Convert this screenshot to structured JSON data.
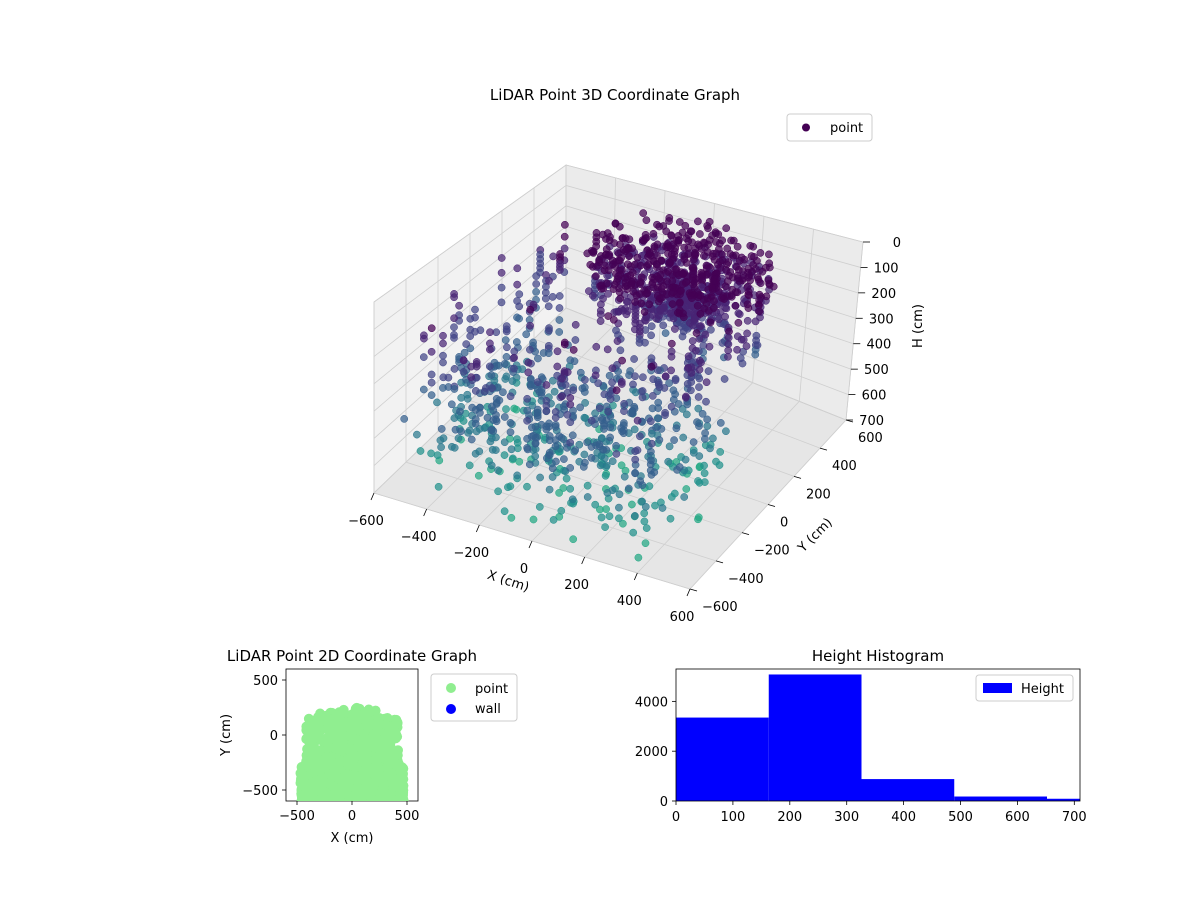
{
  "chart_data": [
    {
      "type": "scatter",
      "projection": "3d",
      "title": "LiDAR Point 3D Coordinate Graph",
      "xlabel": "X (cm)",
      "ylabel": "Y (cm)",
      "zlabel": "H (cm)",
      "xlim": [
        -600,
        600
      ],
      "ylim": [
        -600,
        600
      ],
      "zlim": [
        0,
        700
      ],
      "z_inverted": true,
      "xticks": [
        "−600",
        "−400",
        "−200",
        "0",
        "200",
        "400",
        "600"
      ],
      "yticks": [
        "−600",
        "−400",
        "−200",
        "0",
        "200",
        "400",
        "600"
      ],
      "zticks": [
        "0",
        "100",
        "200",
        "300",
        "400",
        "500",
        "600",
        "700"
      ],
      "legend": {
        "labels": [
          "point"
        ],
        "placement": "upper-right"
      },
      "colormap": "viridis",
      "grid": true,
      "series": [
        {
          "name": "point",
          "color": "#440154",
          "description_of_distribution": "dense cluster near the top (H 0-150) over X -200..400, Y -100..500; sparser points spreading down to H ~700 toward negative Y"
        }
      ]
    },
    {
      "type": "scatter",
      "title": "LiDAR Point 2D Coordinate Graph",
      "xlabel": "X (cm)",
      "ylabel": "Y (cm)",
      "xlim": [
        -600,
        600
      ],
      "ylim": [
        -600,
        600
      ],
      "xticks": [
        "−500",
        "0",
        "500"
      ],
      "yticks": [
        "500",
        "0",
        "−500"
      ],
      "legend": {
        "labels": [
          "point",
          "wall"
        ],
        "placement": "outside-right"
      },
      "series": [
        {
          "name": "point",
          "color": "#90ee90"
        },
        {
          "name": "wall",
          "color": "#0000ff",
          "values": []
        }
      ]
    },
    {
      "type": "bar",
      "subtype": "histogram",
      "title": "Height Histogram",
      "xlabel": "",
      "ylabel": "",
      "xlim": [
        0,
        710
      ],
      "ylim": [
        0,
        5300
      ],
      "xticks": [
        "0",
        "100",
        "200",
        "300",
        "400",
        "500",
        "600",
        "700"
      ],
      "yticks": [
        "0",
        "2000",
        "4000"
      ],
      "legend": {
        "labels": [
          "Height"
        ],
        "placement": "upper-right"
      },
      "bins": [
        [
          0,
          163
        ],
        [
          163,
          326
        ],
        [
          326,
          489
        ],
        [
          489,
          652
        ],
        [
          652,
          815
        ]
      ],
      "series": [
        {
          "name": "Height",
          "color": "#0000ff",
          "values": [
            3350,
            5080,
            880,
            180,
            90
          ]
        }
      ]
    }
  ]
}
